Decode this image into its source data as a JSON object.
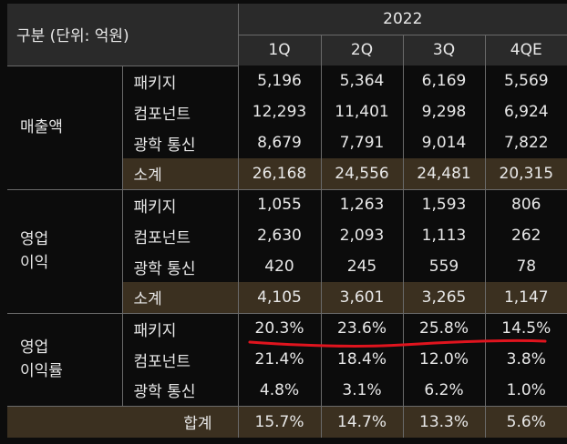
{
  "header": {
    "title": "구분 (단위: 억원)",
    "year": "2022",
    "quarters": [
      "1Q",
      "2Q",
      "3Q",
      "4QE"
    ]
  },
  "sales": {
    "category": "매출액",
    "rows": [
      {
        "label": "패키지",
        "values": [
          "5,196",
          "5,364",
          "6,169",
          "5,569"
        ]
      },
      {
        "label": "컴포넌트",
        "values": [
          "12,293",
          "11,401",
          "9,298",
          "6,924"
        ]
      },
      {
        "label": "광학 통신",
        "values": [
          "8,679",
          "7,791",
          "9,014",
          "7,822"
        ]
      }
    ],
    "subtotal": {
      "label": "소계",
      "values": [
        "26,168",
        "24,556",
        "24,481",
        "20,315"
      ]
    }
  },
  "op_profit": {
    "category_line1": "영업",
    "category_line2": "이익",
    "rows": [
      {
        "label": "패키지",
        "values": [
          "1,055",
          "1,263",
          "1,593",
          "806"
        ]
      },
      {
        "label": "컴포넌트",
        "values": [
          "2,630",
          "2,093",
          "1,113",
          "262"
        ]
      },
      {
        "label": "광학 통신",
        "values": [
          "420",
          "245",
          "559",
          "78"
        ]
      }
    ],
    "subtotal": {
      "label": "소계",
      "values": [
        "4,105",
        "3,601",
        "3,265",
        "1,147"
      ]
    }
  },
  "op_margin": {
    "category_line1": "영업",
    "category_line2": "이익률",
    "rows": [
      {
        "label": "패키지",
        "values": [
          "20.3%",
          "23.6%",
          "25.8%",
          "14.5%"
        ]
      },
      {
        "label": "컴포넌트",
        "values": [
          "21.4%",
          "18.4%",
          "12.0%",
          "3.8%"
        ]
      },
      {
        "label": "광학 통신",
        "values": [
          "4.8%",
          "3.1%",
          "6.2%",
          "1.0%"
        ]
      }
    ]
  },
  "total": {
    "label": "합계",
    "values": [
      "15.7%",
      "14.7%",
      "13.3%",
      "5.6%"
    ]
  },
  "colors": {
    "background": "#0c0c0c",
    "header_bg": "#2a2a2a",
    "subtotal_bg": "#3b3020",
    "underline": "#e0141e"
  }
}
